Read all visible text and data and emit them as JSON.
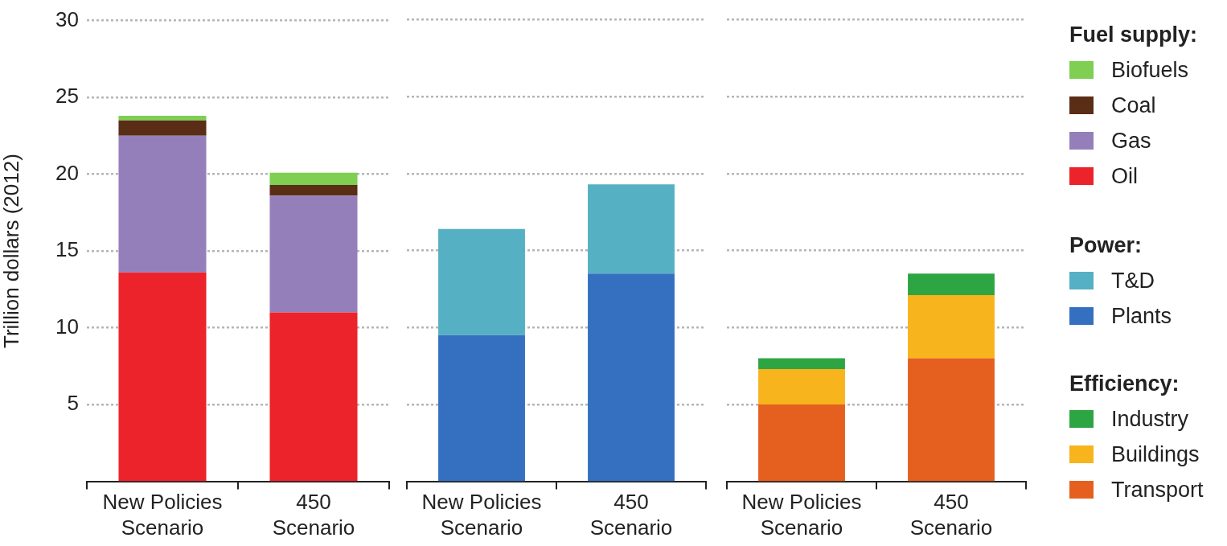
{
  "chart_data": [
    {
      "type": "bar",
      "stacked": true,
      "ylabel": "Trillion dollars (2012)",
      "categories": [
        "New Policies Scenario",
        "450 Scenario"
      ],
      "ylim": [
        0,
        30
      ],
      "yticks": [
        5,
        10,
        15,
        20,
        25,
        30
      ],
      "grid": "y",
      "legend": "right",
      "legend_title": "Fuel supply:",
      "series": [
        {
          "name": "Oil",
          "color": "#ec232b",
          "values": [
            13.6,
            11.0
          ]
        },
        {
          "name": "Gas",
          "color": "#957fba",
          "values": [
            8.9,
            7.6
          ]
        },
        {
          "name": "Coal",
          "color": "#5a2d17",
          "values": [
            1.0,
            0.7
          ]
        },
        {
          "name": "Biofuels",
          "color": "#7ecf52",
          "values": [
            0.3,
            0.8
          ]
        }
      ]
    },
    {
      "type": "bar",
      "stacked": true,
      "categories": [
        "New Policies Scenario",
        "450 Scenario"
      ],
      "ylim": [
        0,
        30
      ],
      "yticks": [
        5,
        10,
        15,
        20,
        25,
        30
      ],
      "grid": "y",
      "tick_labels": "x",
      "legend": "right",
      "legend_title": "Power:",
      "series": [
        {
          "name": "Plants",
          "color": "#3570c0",
          "values": [
            9.5,
            13.5
          ]
        },
        {
          "name": "T&D",
          "color": "#56b0c4",
          "values": [
            6.9,
            5.8
          ]
        }
      ]
    },
    {
      "type": "bar",
      "stacked": true,
      "categories": [
        "New Policies Scenario",
        "450 Scenario"
      ],
      "ylim": [
        0,
        30
      ],
      "yticks": [
        5,
        10,
        15,
        20,
        25,
        30
      ],
      "grid": "y",
      "tick_labels": "x",
      "legend": "right",
      "legend_title": "Efficiency:",
      "series": [
        {
          "name": "Transport",
          "color": "#e5601f",
          "values": [
            5.0,
            8.0
          ]
        },
        {
          "name": "Buildings",
          "color": "#f8b41c",
          "values": [
            2.3,
            4.1
          ]
        },
        {
          "name": "Industry",
          "color": "#2ea543",
          "values": [
            0.7,
            1.4
          ]
        }
      ]
    }
  ]
}
